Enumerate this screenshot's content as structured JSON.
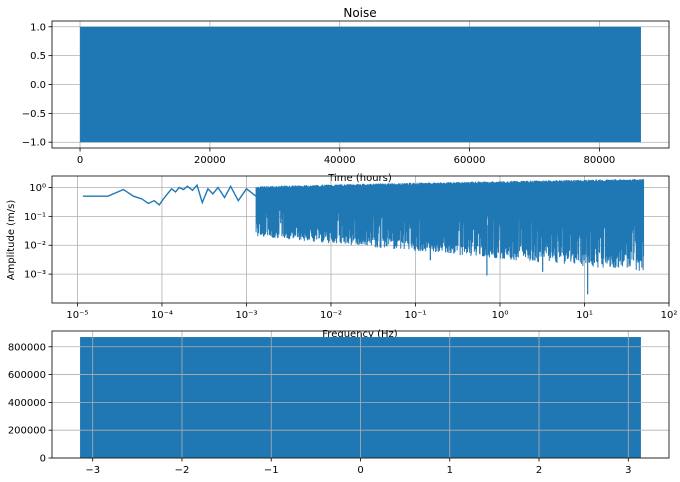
{
  "chart_data": [
    {
      "type": "area",
      "title": "Noise",
      "xlabel": "Time (hours)",
      "ylabel": "",
      "series_color": "#1f77b4",
      "x_range": [
        0,
        86400
      ],
      "xlim": [
        -4320,
        90720
      ],
      "ylim": [
        -1.1,
        1.1
      ],
      "value_band": [
        -1.0,
        1.0
      ],
      "grid": true,
      "xticks": [
        0,
        20000,
        40000,
        60000,
        80000
      ],
      "xtick_labels": [
        "0",
        "20000",
        "40000",
        "60000",
        "80000"
      ],
      "yticks": [
        1.0,
        0.5,
        0.0,
        -0.5,
        -1.0
      ],
      "ytick_labels": [
        "1.0",
        "0.5",
        "0.0",
        "−0.5",
        "−1.0"
      ]
    },
    {
      "type": "line",
      "title": "",
      "xlabel": "Frequency (Hz)",
      "ylabel": "Amplitude (m/s)",
      "series_color": "#1f77b4",
      "xscale": "log",
      "yscale": "log",
      "xlim": [
        5e-06,
        100
      ],
      "ylim": [
        0.0001,
        2.5
      ],
      "grid": true,
      "xticks": [
        1e-05,
        0.0001,
        0.001,
        0.01,
        0.1,
        1,
        10,
        100
      ],
      "xtick_labels": [
        "10⁻⁵",
        "10⁻⁴",
        "10⁻³",
        "10⁻²",
        "10⁻¹",
        "10⁰",
        "10¹",
        "10²"
      ],
      "yticks": [
        1,
        0.1,
        0.01,
        0.001
      ],
      "ytick_labels": [
        "10⁰",
        "10⁻¹",
        "10⁻²",
        "10⁻³"
      ],
      "points": [
        [
          1.16e-05,
          0.5
        ],
        [
          2.3e-05,
          0.5
        ],
        [
          3.5e-05,
          0.85
        ],
        [
          4.6e-05,
          0.5
        ],
        [
          5.8e-05,
          0.4
        ],
        [
          6.9e-05,
          0.28
        ],
        [
          8.1e-05,
          0.35
        ],
        [
          9.3e-05,
          0.25
        ],
        [
          0.000104,
          0.4
        ],
        [
          0.000116,
          0.6
        ],
        [
          0.00013,
          0.9
        ],
        [
          0.000145,
          0.7
        ],
        [
          0.00016,
          1.0
        ],
        [
          0.00018,
          0.85
        ],
        [
          0.0002,
          1.1
        ],
        [
          0.00023,
          0.8
        ],
        [
          0.00026,
          1.2
        ],
        [
          0.0003,
          0.3
        ],
        [
          0.00035,
          0.9
        ],
        [
          0.0004,
          0.6
        ],
        [
          0.00046,
          1.0
        ],
        [
          0.00055,
          0.45
        ],
        [
          0.00065,
          1.1
        ],
        [
          0.0008,
          0.35
        ],
        [
          0.001,
          0.9
        ],
        [
          0.0013,
          0.5
        ]
      ],
      "noise_band_start": 0.0013,
      "noise_band_end": 50,
      "noise_top": 2.0,
      "noise_floor_start": 0.02,
      "noise_floor_end": 0.0012,
      "deep_dips": [
        [
          0.7,
          0.0009
        ],
        [
          10.9,
          0.0002
        ],
        [
          0.15,
          0.003
        ],
        [
          3.2,
          0.0012
        ]
      ]
    },
    {
      "type": "bar",
      "title": "",
      "xlabel": "",
      "ylabel": "",
      "series_color": "#1f77b4",
      "bar_span": [
        -3.1416,
        3.1416
      ],
      "bar_value": 870000,
      "xlim": [
        -3.456,
        3.456
      ],
      "ylim": [
        0,
        913500
      ],
      "grid": true,
      "xticks": [
        -3,
        -2,
        -1,
        0,
        1,
        2,
        3
      ],
      "xtick_labels": [
        "−3",
        "−2",
        "−1",
        "0",
        "1",
        "2",
        "3"
      ],
      "yticks": [
        0,
        200000,
        400000,
        600000,
        800000
      ],
      "ytick_labels": [
        "0",
        "200000",
        "400000",
        "600000",
        "800000"
      ]
    }
  ]
}
